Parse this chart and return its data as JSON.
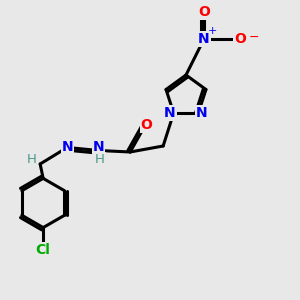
{
  "background_color": "#e8e8e8",
  "atom_colors": {
    "N": "#0000ee",
    "O": "#ff0000",
    "Cl": "#00aa00",
    "C": "#000000",
    "H": "#4a9a8a"
  },
  "bond_color": "#000000",
  "bond_width": 2.2,
  "figsize": [
    3.0,
    3.0
  ],
  "dpi": 100,
  "xlim": [
    0,
    10
  ],
  "ylim": [
    0,
    10
  ]
}
